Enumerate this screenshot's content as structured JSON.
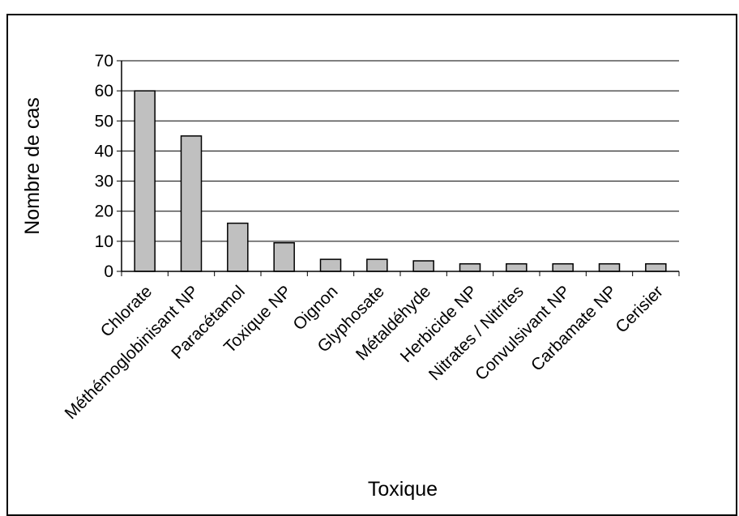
{
  "chart_data": {
    "type": "bar",
    "title": "",
    "xlabel": "Toxique",
    "ylabel": "Nombre de cas",
    "categories": [
      "Chlorate",
      "Méthémoglobinisant NP",
      "Paracétamol",
      "Toxique NP",
      "Oignon",
      "Glyphosate",
      "Métaldéhyde",
      "Herbicide NP",
      "Nitrates / Nitrites",
      "Convulsivant NP",
      "Carbamate NP",
      "Cerisier"
    ],
    "values": [
      60,
      45,
      16,
      9.5,
      4,
      4,
      3.5,
      2.5,
      2.5,
      2.5,
      2.5,
      2.5
    ],
    "ylim": [
      0,
      70
    ],
    "yticks": [
      0,
      10,
      20,
      30,
      40,
      50,
      60,
      70
    ],
    "grid": true,
    "legend": "none",
    "colors": {
      "bar_fill": "#c0c0c0",
      "bar_stroke": "#000000",
      "grid": "#000000",
      "background": "#ffffff"
    }
  }
}
